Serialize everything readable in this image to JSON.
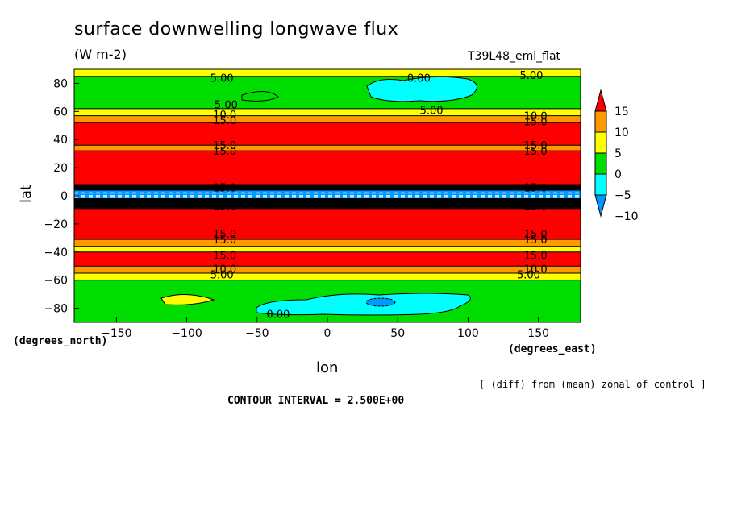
{
  "header": {
    "title": "surface downwelling longwave flux",
    "units": "(W m-2)",
    "run": "T39L48_eml_flat"
  },
  "axes": {
    "xlabel": "lon",
    "ylabel": "lat",
    "x_unit": "(degrees_east)",
    "y_unit": "(degrees_north)"
  },
  "footer": {
    "note": "[ (diff) from (mean) zonal of control ]",
    "contour_interval": "CONTOUR INTERVAL = 2.500E+00"
  },
  "chart_data": {
    "type": "heatmap",
    "title": "surface downwelling longwave flux",
    "subtitle": "(W m-2)",
    "xlabel": "lon",
    "ylabel": "lat",
    "xlim": [
      -180,
      180
    ],
    "ylim": [
      -90,
      90
    ],
    "x_ticks": [
      -150,
      -100,
      -50,
      0,
      50,
      100,
      150
    ],
    "y_ticks": [
      80,
      60,
      40,
      20,
      0,
      -20,
      -40,
      -60,
      -80
    ],
    "colorbar": {
      "ticks": [
        15,
        10,
        5,
        0,
        -5,
        -10
      ],
      "levels": [
        {
          "from": 15,
          "to": null,
          "color": "#ff0000"
        },
        {
          "from": 10,
          "to": 15,
          "color": "#ff9900"
        },
        {
          "from": 5,
          "to": 10,
          "color": "#ffff00"
        },
        {
          "from": 0,
          "to": 5,
          "color": "#00dd00"
        },
        {
          "from": -5,
          "to": 0,
          "color": "#00ffff"
        },
        {
          "from": -10,
          "to": -5,
          "color": "#0099ff"
        }
      ]
    },
    "lat_bands": [
      {
        "lat_from": 90,
        "lat_to": 85,
        "value": 7
      },
      {
        "lat_from": 85,
        "lat_to": 62,
        "value": 2
      },
      {
        "lat_from": 62,
        "lat_to": 57,
        "value": 7
      },
      {
        "lat_from": 57,
        "lat_to": 52,
        "value": 12
      },
      {
        "lat_from": 52,
        "lat_to": 36,
        "value": 17
      },
      {
        "lat_from": 36,
        "lat_to": 32,
        "value": 12
      },
      {
        "lat_from": 32,
        "lat_to": 8,
        "value": 17
      },
      {
        "lat_from": 8,
        "lat_to": 4,
        "value": 40
      },
      {
        "lat_from": 4,
        "lat_to": -2,
        "value": -7
      },
      {
        "lat_from": -2,
        "lat_to": -9,
        "value": 40
      },
      {
        "lat_from": -9,
        "lat_to": -31,
        "value": 17
      },
      {
        "lat_from": -31,
        "lat_to": -36,
        "value": 12
      },
      {
        "lat_from": -36,
        "lat_to": -40,
        "value": 7
      },
      {
        "lat_from": -40,
        "lat_to": -50,
        "value": 17
      },
      {
        "lat_from": -50,
        "lat_to": -55,
        "value": 12
      },
      {
        "lat_from": -55,
        "lat_to": -60,
        "value": 7
      },
      {
        "lat_from": -60,
        "lat_to": -90,
        "value": 2
      }
    ],
    "contour_labels": [
      {
        "text": "5.00",
        "lon": -75,
        "lat": 84
      },
      {
        "text": "0.00",
        "lon": 65,
        "lat": 84
      },
      {
        "text": "5.00",
        "lon": 145,
        "lat": 86
      },
      {
        "text": "5.00",
        "lon": -72,
        "lat": 65
      },
      {
        "text": "5.00",
        "lon": 74,
        "lat": 61
      },
      {
        "text": "10.0",
        "lon": -73,
        "lat": 58
      },
      {
        "text": "15.0",
        "lon": -73,
        "lat": 54
      },
      {
        "text": "10.0",
        "lon": 148,
        "lat": 57
      },
      {
        "text": "15.0",
        "lon": 148,
        "lat": 53
      },
      {
        "text": "15.0",
        "lon": -73,
        "lat": 36
      },
      {
        "text": "15.0",
        "lon": -73,
        "lat": 32
      },
      {
        "text": "15.0",
        "lon": 148,
        "lat": 36
      },
      {
        "text": "15.0",
        "lon": 148,
        "lat": 32
      },
      {
        "text": "15.0",
        "lon": -73,
        "lat": 6
      },
      {
        "text": "15.0",
        "lon": -73,
        "lat": -7
      },
      {
        "text": "15.0",
        "lon": 148,
        "lat": 6
      },
      {
        "text": "15.0",
        "lon": 148,
        "lat": -7
      },
      {
        "text": "15.0",
        "lon": -73,
        "lat": -27
      },
      {
        "text": "15.0",
        "lon": -73,
        "lat": -31
      },
      {
        "text": "15.0",
        "lon": 148,
        "lat": -27
      },
      {
        "text": "15.0",
        "lon": 148,
        "lat": -31
      },
      {
        "text": "15.0",
        "lon": -73,
        "lat": -42
      },
      {
        "text": "15.0",
        "lon": 148,
        "lat": -42
      },
      {
        "text": "10.0",
        "lon": -73,
        "lat": -52
      },
      {
        "text": "10.0",
        "lon": 148,
        "lat": -52
      },
      {
        "text": "5.00",
        "lon": -75,
        "lat": -56
      },
      {
        "text": "5.00",
        "lon": 143,
        "lat": -56
      },
      {
        "text": "0.00",
        "lon": -35,
        "lat": -84
      }
    ]
  }
}
